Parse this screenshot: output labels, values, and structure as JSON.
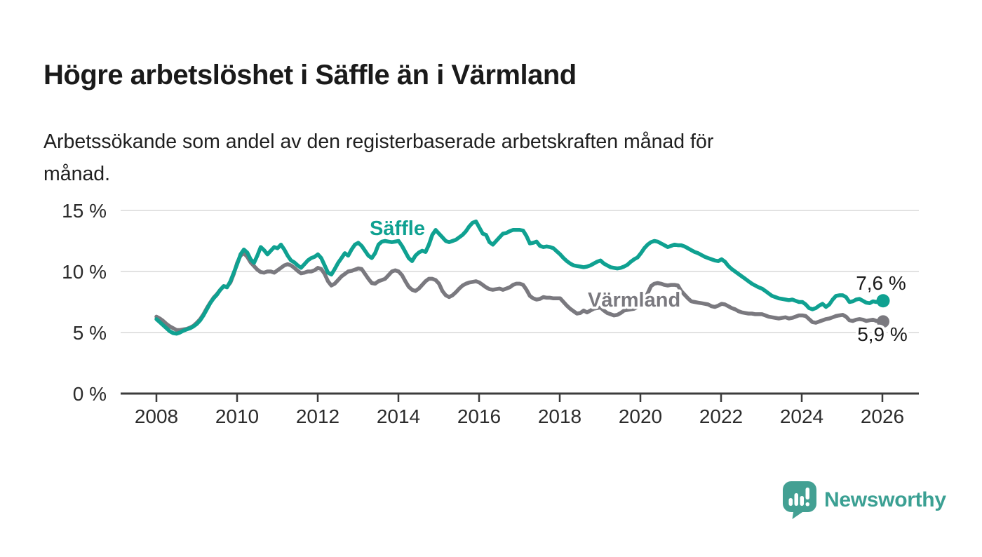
{
  "header": {
    "title": "Högre arbetslöshet i Säffle än i Värmland",
    "subtitle": "Arbetssökande som andel av den registerbaserade arbetskraften månad för\nmånad."
  },
  "brand": {
    "name": "Newsworthy",
    "color": "#3ba093"
  },
  "colors": {
    "saffle": "#0fa191",
    "varmland": "#7a797f",
    "axis": "#3c3c3c",
    "grid": "#d9d9d9",
    "tick_label": "#2b2b2b",
    "end_label": "#1a1a1a"
  },
  "chart_data": {
    "type": "line",
    "unit": "%",
    "frequency": "monthly",
    "x_start": "2008-01",
    "x_end": "2026-01",
    "ylim": [
      0,
      15.6
    ],
    "grid": "horizontal",
    "legend_position": "inline-labels",
    "y_ticks": [
      {
        "value": 0,
        "label": "0 %"
      },
      {
        "value": 5,
        "label": "5 %"
      },
      {
        "value": 10,
        "label": "10 %"
      },
      {
        "value": 15,
        "label": "15 %"
      }
    ],
    "x_ticks": [
      {
        "value": 2008,
        "label": "2008"
      },
      {
        "value": 2010,
        "label": "2010"
      },
      {
        "value": 2012,
        "label": "2012"
      },
      {
        "value": 2014,
        "label": "2014"
      },
      {
        "value": 2016,
        "label": "2016"
      },
      {
        "value": 2018,
        "label": "2018"
      },
      {
        "value": 2020,
        "label": "2020"
      },
      {
        "value": 2022,
        "label": "2022"
      },
      {
        "value": 2024,
        "label": "2024"
      },
      {
        "value": 2026,
        "label": "2026"
      }
    ],
    "series": [
      {
        "name": "Säffle",
        "color": "#0fa191",
        "current_value": 7.6,
        "end_label": "7,6 %",
        "values": [
          6.1,
          5.85,
          5.6,
          5.35,
          5.1,
          4.95,
          4.9,
          5.0,
          5.15,
          5.25,
          5.35,
          5.5,
          5.7,
          6.0,
          6.4,
          6.9,
          7.4,
          7.8,
          8.1,
          8.5,
          8.8,
          8.7,
          9.2,
          9.9,
          10.6,
          11.4,
          11.8,
          11.55,
          11.0,
          10.7,
          11.3,
          12.0,
          11.75,
          11.4,
          11.7,
          12.0,
          11.9,
          12.2,
          11.8,
          11.3,
          10.9,
          10.75,
          10.5,
          10.3,
          10.6,
          10.9,
          11.1,
          11.2,
          11.4,
          11.1,
          10.5,
          9.9,
          9.75,
          10.2,
          10.7,
          11.1,
          11.5,
          11.3,
          11.8,
          12.2,
          12.35,
          12.1,
          11.7,
          11.3,
          11.1,
          11.5,
          12.2,
          12.45,
          12.5,
          12.45,
          12.4,
          12.45,
          12.5,
          12.1,
          11.6,
          11.1,
          10.85,
          11.3,
          11.55,
          11.7,
          11.6,
          12.2,
          13.0,
          13.4,
          13.1,
          12.8,
          12.5,
          12.4,
          12.5,
          12.6,
          12.8,
          13.0,
          13.3,
          13.7,
          14.0,
          14.1,
          13.6,
          13.1,
          13.0,
          12.4,
          12.2,
          12.5,
          12.8,
          13.1,
          13.15,
          13.3,
          13.4,
          13.4,
          13.4,
          13.35,
          12.9,
          12.3,
          12.35,
          12.45,
          12.1,
          12.0,
          12.05,
          12.0,
          11.9,
          11.65,
          11.4,
          11.1,
          10.85,
          10.65,
          10.5,
          10.45,
          10.4,
          10.35,
          10.4,
          10.5,
          10.65,
          10.8,
          10.9,
          10.65,
          10.5,
          10.35,
          10.3,
          10.25,
          10.3,
          10.4,
          10.55,
          10.8,
          11.0,
          11.15,
          11.5,
          11.9,
          12.2,
          12.4,
          12.5,
          12.45,
          12.3,
          12.15,
          12.0,
          12.1,
          12.2,
          12.15,
          12.15,
          12.05,
          11.9,
          11.75,
          11.6,
          11.5,
          11.35,
          11.2,
          11.1,
          11.0,
          10.9,
          10.85,
          11.0,
          10.8,
          10.45,
          10.2,
          10.0,
          9.8,
          9.6,
          9.4,
          9.2,
          9.0,
          8.85,
          8.7,
          8.6,
          8.4,
          8.2,
          8.0,
          7.9,
          7.8,
          7.75,
          7.7,
          7.65,
          7.7,
          7.6,
          7.5,
          7.5,
          7.3,
          7.0,
          6.9,
          7.0,
          7.2,
          7.35,
          7.1,
          7.3,
          7.7,
          8.0,
          8.05,
          8.05,
          7.9,
          7.5,
          7.55,
          7.7,
          7.75,
          7.6,
          7.45,
          7.4,
          7.55,
          7.5,
          7.55,
          7.6
        ]
      },
      {
        "name": "Värmland",
        "color": "#7a797f",
        "current_value": 5.9,
        "end_label": "5,9 %",
        "values": [
          6.3,
          6.15,
          5.95,
          5.7,
          5.5,
          5.35,
          5.2,
          5.2,
          5.25,
          5.3,
          5.4,
          5.55,
          5.8,
          6.1,
          6.5,
          7.0,
          7.45,
          7.85,
          8.15,
          8.5,
          8.8,
          8.75,
          9.1,
          9.8,
          10.7,
          11.3,
          11.5,
          11.2,
          10.75,
          10.45,
          10.15,
          9.95,
          9.9,
          10.0,
          10.0,
          9.9,
          10.1,
          10.3,
          10.5,
          10.6,
          10.5,
          10.3,
          10.05,
          9.85,
          9.9,
          10.0,
          10.0,
          10.1,
          10.3,
          10.2,
          9.8,
          9.2,
          8.85,
          9.0,
          9.3,
          9.6,
          9.8,
          10.0,
          10.05,
          10.15,
          10.25,
          10.2,
          9.8,
          9.4,
          9.05,
          9.0,
          9.2,
          9.3,
          9.4,
          9.7,
          10.0,
          10.1,
          10.0,
          9.7,
          9.2,
          8.75,
          8.5,
          8.4,
          8.6,
          8.9,
          9.2,
          9.4,
          9.4,
          9.3,
          9.0,
          8.4,
          8.05,
          7.9,
          8.05,
          8.3,
          8.6,
          8.85,
          9.0,
          9.1,
          9.15,
          9.2,
          9.1,
          8.9,
          8.7,
          8.55,
          8.5,
          8.55,
          8.6,
          8.5,
          8.6,
          8.7,
          8.9,
          9.0,
          9.0,
          8.9,
          8.5,
          8.0,
          7.8,
          7.7,
          7.75,
          7.9,
          7.85,
          7.85,
          7.8,
          7.8,
          7.8,
          7.5,
          7.2,
          6.95,
          6.75,
          6.55,
          6.6,
          6.8,
          6.65,
          6.8,
          6.95,
          7.0,
          7.05,
          6.8,
          6.6,
          6.5,
          6.4,
          6.45,
          6.6,
          6.8,
          6.85,
          6.9,
          6.95,
          7.1,
          7.4,
          7.7,
          8.2,
          8.8,
          9.0,
          9.05,
          9.0,
          8.9,
          8.85,
          8.9,
          8.9,
          8.85,
          8.4,
          8.1,
          7.8,
          7.55,
          7.5,
          7.45,
          7.4,
          7.35,
          7.3,
          7.15,
          7.1,
          7.2,
          7.35,
          7.3,
          7.15,
          7.0,
          6.9,
          6.75,
          6.65,
          6.6,
          6.55,
          6.55,
          6.5,
          6.5,
          6.5,
          6.4,
          6.3,
          6.25,
          6.2,
          6.15,
          6.2,
          6.25,
          6.15,
          6.2,
          6.3,
          6.4,
          6.4,
          6.35,
          6.1,
          5.85,
          5.8,
          5.9,
          6.0,
          6.1,
          6.15,
          6.25,
          6.35,
          6.4,
          6.45,
          6.3,
          6.0,
          5.95,
          6.05,
          6.1,
          6.05,
          5.95,
          6.0,
          6.05,
          5.95,
          5.9,
          5.9
        ]
      }
    ]
  }
}
